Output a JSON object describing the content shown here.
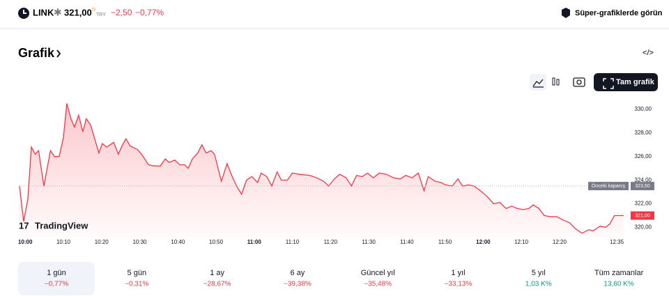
{
  "header": {
    "symbol": "LINK",
    "price": "321,00",
    "price_mark": "D",
    "currency": "TRY",
    "change": "−2,50",
    "change_pct": "−0,77%",
    "link": "Süper-grafiklerde görün"
  },
  "section_title": "Grafik",
  "full_chart_button": "Tam grafik",
  "chart_data": {
    "type": "line",
    "color": "#f23645",
    "x": [
      -1.5,
      -0.4,
      0.7,
      1.6,
      2.6,
      3.5,
      4.9,
      6.6,
      7.7,
      8.9,
      10.0,
      10.9,
      12.0,
      12.9,
      14.0,
      15.1,
      16.0,
      17.1,
      18.2,
      19.3,
      20.2,
      21.3,
      23.2,
      24.4,
      25.5,
      26.4,
      27.5,
      29.4,
      30.5,
      32.3,
      33.9,
      35.4,
      36.7,
      37.7,
      39.2,
      40.5,
      41.8,
      42.7,
      43.8,
      45.2,
      46.3,
      47.4,
      48.7,
      49.6,
      51.4,
      52.9,
      54.1,
      55.4,
      56.7,
      58.0,
      59.4,
      60.9,
      61.8,
      63.3,
      64.6,
      66.0,
      67.1,
      68.7,
      70.0,
      71.8,
      74.6,
      76.4,
      78.2,
      79.5,
      81.0,
      82.4,
      84.1,
      85.5,
      86.8,
      88.3,
      89.7,
      91.2,
      92.8,
      94.6,
      96.5,
      98.3,
      99.7,
      101.4,
      103.0,
      104.5,
      105.6,
      107.4,
      108.9,
      110.1,
      111.9,
      113.4,
      114.6,
      116.2,
      117.6,
      119.3,
      121.1,
      122.7,
      124.4,
      126.0,
      127.5,
      128.9,
      130.5,
      132.0,
      133.1,
      134.6,
      136.0,
      137.5,
      139.3,
      141.1,
      142.6,
      144.1,
      145.9,
      147.7,
      148.8,
      150.6,
      152.1,
      153.2,
      154.4,
      156.8
    ],
    "values": [
      323.5,
      320.5,
      322.4,
      326.8,
      326.2,
      326.5,
      323.5,
      326.5,
      326.0,
      326.0,
      327.6,
      330.5,
      329.2,
      328.5,
      329.5,
      328.1,
      329.2,
      328.7,
      327.5,
      326.3,
      327.1,
      326.8,
      327.2,
      326.2,
      327.0,
      327.5,
      326.9,
      326.6,
      326.2,
      325.3,
      325.2,
      325.2,
      325.8,
      325.5,
      325.7,
      325.3,
      325.3,
      325.0,
      325.8,
      326.3,
      327.0,
      326.3,
      326.5,
      326.2,
      323.9,
      325.4,
      324.4,
      323.5,
      322.8,
      324.0,
      324.3,
      323.8,
      324.6,
      324.3,
      323.5,
      324.7,
      324.0,
      324.0,
      324.6,
      324.5,
      324.4,
      324.2,
      323.9,
      323.5,
      324.1,
      324.5,
      324.2,
      323.5,
      324.4,
      324.3,
      324.6,
      324.2,
      324.6,
      324.5,
      324.2,
      324.1,
      324.4,
      324.2,
      324.6,
      323.1,
      324.3,
      323.9,
      323.8,
      323.6,
      323.5,
      324.1,
      323.5,
      323.6,
      323.5,
      323.1,
      322.6,
      322.0,
      322.1,
      321.6,
      321.8,
      321.6,
      321.5,
      321.6,
      321.9,
      321.6,
      321.0,
      320.9,
      320.9,
      320.6,
      320.4,
      319.9,
      319.5,
      319.8,
      319.7,
      320.1,
      320.0,
      320.3,
      321.0,
      321.0
    ],
    "xlim": [
      -1.5,
      157
    ],
    "xticks": [
      {
        "value": 0,
        "label": "10:00"
      },
      {
        "value": 10,
        "label": "10:10"
      },
      {
        "value": 20,
        "label": "10:20"
      },
      {
        "value": 30,
        "label": "10:30"
      },
      {
        "value": 40,
        "label": "10:40"
      },
      {
        "value": 50,
        "label": "10:50"
      },
      {
        "value": 60,
        "label": "11:00"
      },
      {
        "value": 70,
        "label": "11:10"
      },
      {
        "value": 80,
        "label": "11:20"
      },
      {
        "value": 90,
        "label": "11:30"
      },
      {
        "value": 100,
        "label": "11:40"
      },
      {
        "value": 110,
        "label": "11:50"
      },
      {
        "value": 120,
        "label": "12:00"
      },
      {
        "value": 130,
        "label": "12:10"
      },
      {
        "value": 140,
        "label": "12:20"
      },
      {
        "value": 155,
        "label": "12:35"
      }
    ],
    "ylim": [
      319.2,
      331
    ],
    "yticks": [
      {
        "value": 320,
        "label": "320,00"
      },
      {
        "value": 322,
        "label": "322,00"
      },
      {
        "value": 324,
        "label": "324,00"
      },
      {
        "value": 326,
        "label": "326,00"
      },
      {
        "value": 328,
        "label": "328,00"
      },
      {
        "value": 330,
        "label": "330,00"
      }
    ],
    "previous_close": {
      "label": "Önceki kapanış",
      "value": 323.5,
      "value_label": "323,50"
    },
    "last": {
      "value": 321,
      "value_label": "321,00"
    },
    "watermark": "TradingView"
  },
  "periods": [
    {
      "label": "1 gün",
      "change": "−0,77%",
      "color": "#f23645",
      "selected": true
    },
    {
      "label": "5 gün",
      "change": "−0,31%",
      "color": "#f23645"
    },
    {
      "label": "1 ay",
      "change": "−28,67%",
      "color": "#f23645"
    },
    {
      "label": "6 ay",
      "change": "−39,38%",
      "color": "#f23645"
    },
    {
      "label": "Güncel yıl",
      "change": "−35,48%",
      "color": "#f23645"
    },
    {
      "label": "1 yıl",
      "change": "−33,13%",
      "color": "#f23645"
    },
    {
      "label": "5 yıl",
      "change": "1,03 K%",
      "color": "#089981"
    },
    {
      "label": "Tüm zamanlar",
      "change": "13,60 K%",
      "color": "#089981"
    }
  ]
}
